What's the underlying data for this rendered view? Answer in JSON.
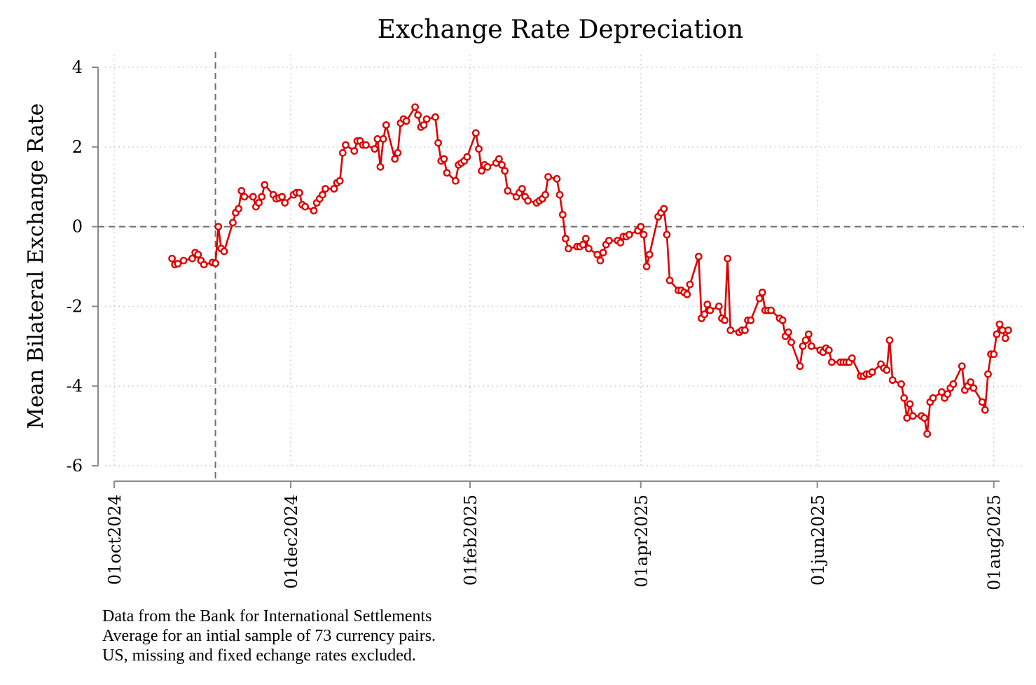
{
  "chart_data": {
    "type": "line",
    "title": "Exchange Rate Depreciation",
    "xlabel": "",
    "ylabel": "Mean Bilateral Exchange Rate",
    "x_ticks": [
      "2024-10-01",
      "2024-12-01",
      "2025-02-01",
      "2025-04-01",
      "2025-06-01",
      "2025-08-01"
    ],
    "x_tick_labels": [
      "01oct2024",
      "01dec2024",
      "01feb2025",
      "01apr2025",
      "01jun2025",
      "01aug2025"
    ],
    "xlim": [
      "2024-10-01",
      "2025-08-03"
    ],
    "y_ticks": [
      4,
      2,
      0,
      -2,
      -4,
      -6
    ],
    "y_tick_labels": [
      "4",
      "2",
      "0",
      "-2",
      "-4",
      "-6"
    ],
    "ylim": [
      -6,
      4
    ],
    "grid": true,
    "reference_lines": [
      {
        "axis": "y",
        "value": 0,
        "style": "dashed"
      },
      {
        "axis": "x",
        "value": "2024-11-05",
        "style": "dashed"
      }
    ],
    "series": [
      {
        "color": "#dd0000",
        "marker": "hollow-circle",
        "points": [
          [
            "2024-10-21",
            -0.8
          ],
          [
            "2024-10-22",
            -0.95
          ],
          [
            "2024-10-23",
            -0.93
          ],
          [
            "2024-10-25",
            -0.85
          ],
          [
            "2024-10-28",
            -0.8
          ],
          [
            "2024-10-29",
            -0.65
          ],
          [
            "2024-10-30",
            -0.7
          ],
          [
            "2024-10-31",
            -0.85
          ],
          [
            "2024-11-01",
            -0.95
          ],
          [
            "2024-11-04",
            -0.9
          ],
          [
            "2024-11-05",
            -0.92
          ],
          [
            "2024-11-06",
            0.0
          ],
          [
            "2024-11-07",
            -0.55
          ],
          [
            "2024-11-08",
            -0.62
          ],
          [
            "2024-11-11",
            0.1
          ],
          [
            "2024-11-12",
            0.35
          ],
          [
            "2024-11-13",
            0.45
          ],
          [
            "2024-11-14",
            0.9
          ],
          [
            "2024-11-15",
            0.75
          ],
          [
            "2024-11-18",
            0.75
          ],
          [
            "2024-11-19",
            0.5
          ],
          [
            "2024-11-20",
            0.6
          ],
          [
            "2024-11-21",
            0.75
          ],
          [
            "2024-11-22",
            1.05
          ],
          [
            "2024-11-25",
            0.8
          ],
          [
            "2024-11-26",
            0.7
          ],
          [
            "2024-11-27",
            0.72
          ],
          [
            "2024-11-28",
            0.75
          ],
          [
            "2024-11-29",
            0.6
          ],
          [
            "2024-12-02",
            0.8
          ],
          [
            "2024-12-03",
            0.85
          ],
          [
            "2024-12-04",
            0.85
          ],
          [
            "2024-12-05",
            0.55
          ],
          [
            "2024-12-06",
            0.5
          ],
          [
            "2024-12-09",
            0.4
          ],
          [
            "2024-12-10",
            0.6
          ],
          [
            "2024-12-11",
            0.7
          ],
          [
            "2024-12-12",
            0.8
          ],
          [
            "2024-12-13",
            0.95
          ],
          [
            "2024-12-16",
            0.95
          ],
          [
            "2024-12-17",
            1.1
          ],
          [
            "2024-12-18",
            1.15
          ],
          [
            "2024-12-19",
            1.85
          ],
          [
            "2024-12-20",
            2.05
          ],
          [
            "2024-12-23",
            1.9
          ],
          [
            "2024-12-24",
            2.15
          ],
          [
            "2024-12-25",
            2.15
          ],
          [
            "2024-12-26",
            2.05
          ],
          [
            "2024-12-27",
            2.05
          ],
          [
            "2024-12-30",
            1.95
          ],
          [
            "2024-12-31",
            2.2
          ],
          [
            "2025-01-01",
            1.5
          ],
          [
            "2025-01-02",
            2.2
          ],
          [
            "2025-01-03",
            2.55
          ],
          [
            "2025-01-06",
            1.7
          ],
          [
            "2025-01-07",
            1.85
          ],
          [
            "2025-01-08",
            2.6
          ],
          [
            "2025-01-09",
            2.7
          ],
          [
            "2025-01-10",
            2.65
          ],
          [
            "2025-01-13",
            3.0
          ],
          [
            "2025-01-14",
            2.8
          ],
          [
            "2025-01-15",
            2.5
          ],
          [
            "2025-01-16",
            2.55
          ],
          [
            "2025-01-17",
            2.7
          ],
          [
            "2025-01-20",
            2.75
          ],
          [
            "2025-01-21",
            2.1
          ],
          [
            "2025-01-22",
            1.65
          ],
          [
            "2025-01-23",
            1.7
          ],
          [
            "2025-01-24",
            1.35
          ],
          [
            "2025-01-27",
            1.15
          ],
          [
            "2025-01-28",
            1.55
          ],
          [
            "2025-01-29",
            1.6
          ],
          [
            "2025-01-30",
            1.65
          ],
          [
            "2025-01-31",
            1.75
          ],
          [
            "2025-02-03",
            2.35
          ],
          [
            "2025-02-04",
            1.95
          ],
          [
            "2025-02-05",
            1.4
          ],
          [
            "2025-02-06",
            1.55
          ],
          [
            "2025-02-07",
            1.5
          ],
          [
            "2025-02-10",
            1.6
          ],
          [
            "2025-02-11",
            1.7
          ],
          [
            "2025-02-12",
            1.55
          ],
          [
            "2025-02-13",
            1.4
          ],
          [
            "2025-02-14",
            0.9
          ],
          [
            "2025-02-17",
            0.75
          ],
          [
            "2025-02-18",
            0.85
          ],
          [
            "2025-02-19",
            0.95
          ],
          [
            "2025-02-20",
            0.75
          ],
          [
            "2025-02-21",
            0.65
          ],
          [
            "2025-02-24",
            0.6
          ],
          [
            "2025-02-25",
            0.65
          ],
          [
            "2025-02-26",
            0.7
          ],
          [
            "2025-02-27",
            0.8
          ],
          [
            "2025-02-28",
            1.25
          ],
          [
            "2025-03-03",
            1.2
          ],
          [
            "2025-03-04",
            0.8
          ],
          [
            "2025-03-05",
            0.3
          ],
          [
            "2025-03-06",
            -0.3
          ],
          [
            "2025-03-07",
            -0.55
          ],
          [
            "2025-03-10",
            -0.5
          ],
          [
            "2025-03-11",
            -0.5
          ],
          [
            "2025-03-12",
            -0.45
          ],
          [
            "2025-03-13",
            -0.3
          ],
          [
            "2025-03-14",
            -0.55
          ],
          [
            "2025-03-17",
            -0.7
          ],
          [
            "2025-03-18",
            -0.85
          ],
          [
            "2025-03-19",
            -0.65
          ],
          [
            "2025-03-20",
            -0.45
          ],
          [
            "2025-03-21",
            -0.35
          ],
          [
            "2025-03-24",
            -0.35
          ],
          [
            "2025-03-25",
            -0.4
          ],
          [
            "2025-03-26",
            -0.25
          ],
          [
            "2025-03-27",
            -0.25
          ],
          [
            "2025-03-28",
            -0.2
          ],
          [
            "2025-03-31",
            -0.1
          ],
          [
            "2025-04-01",
            0.0
          ],
          [
            "2025-04-02",
            -0.2
          ],
          [
            "2025-04-03",
            -1.0
          ],
          [
            "2025-04-04",
            -0.7
          ],
          [
            "2025-04-07",
            0.25
          ],
          [
            "2025-04-08",
            0.35
          ],
          [
            "2025-04-09",
            0.45
          ],
          [
            "2025-04-10",
            -0.2
          ],
          [
            "2025-04-11",
            -1.35
          ],
          [
            "2025-04-14",
            -1.6
          ],
          [
            "2025-04-15",
            -1.6
          ],
          [
            "2025-04-16",
            -1.65
          ],
          [
            "2025-04-17",
            -1.7
          ],
          [
            "2025-04-18",
            -1.45
          ],
          [
            "2025-04-21",
            -0.75
          ],
          [
            "2025-04-22",
            -2.3
          ],
          [
            "2025-04-23",
            -2.2
          ],
          [
            "2025-04-24",
            -1.95
          ],
          [
            "2025-04-25",
            -2.1
          ],
          [
            "2025-04-28",
            -2.0
          ],
          [
            "2025-04-29",
            -2.3
          ],
          [
            "2025-04-30",
            -2.35
          ],
          [
            "2025-05-01",
            -0.8
          ],
          [
            "2025-05-02",
            -2.6
          ],
          [
            "2025-05-05",
            -2.65
          ],
          [
            "2025-05-06",
            -2.6
          ],
          [
            "2025-05-07",
            -2.6
          ],
          [
            "2025-05-08",
            -2.35
          ],
          [
            "2025-05-09",
            -2.35
          ],
          [
            "2025-05-12",
            -1.8
          ],
          [
            "2025-05-13",
            -1.65
          ],
          [
            "2025-05-14",
            -2.1
          ],
          [
            "2025-05-15",
            -2.1
          ],
          [
            "2025-05-16",
            -2.1
          ],
          [
            "2025-05-19",
            -2.3
          ],
          [
            "2025-05-20",
            -2.35
          ],
          [
            "2025-05-21",
            -2.75
          ],
          [
            "2025-05-22",
            -2.65
          ],
          [
            "2025-05-23",
            -2.9
          ],
          [
            "2025-05-26",
            -3.5
          ],
          [
            "2025-05-27",
            -3.0
          ],
          [
            "2025-05-28",
            -2.85
          ],
          [
            "2025-05-29",
            -2.7
          ],
          [
            "2025-05-30",
            -3.0
          ],
          [
            "2025-06-02",
            -3.1
          ],
          [
            "2025-06-03",
            -3.15
          ],
          [
            "2025-06-04",
            -3.05
          ],
          [
            "2025-06-05",
            -3.1
          ],
          [
            "2025-06-06",
            -3.4
          ],
          [
            "2025-06-09",
            -3.4
          ],
          [
            "2025-06-10",
            -3.4
          ],
          [
            "2025-06-11",
            -3.4
          ],
          [
            "2025-06-12",
            -3.4
          ],
          [
            "2025-06-13",
            -3.3
          ],
          [
            "2025-06-16",
            -3.75
          ],
          [
            "2025-06-17",
            -3.75
          ],
          [
            "2025-06-18",
            -3.7
          ],
          [
            "2025-06-19",
            -3.7
          ],
          [
            "2025-06-20",
            -3.65
          ],
          [
            "2025-06-23",
            -3.45
          ],
          [
            "2025-06-24",
            -3.55
          ],
          [
            "2025-06-25",
            -3.6
          ],
          [
            "2025-06-26",
            -2.85
          ],
          [
            "2025-06-27",
            -3.85
          ],
          [
            "2025-06-30",
            -3.95
          ],
          [
            "2025-07-01",
            -4.3
          ],
          [
            "2025-07-02",
            -4.8
          ],
          [
            "2025-07-03",
            -4.45
          ],
          [
            "2025-07-04",
            -4.75
          ],
          [
            "2025-07-07",
            -4.75
          ],
          [
            "2025-07-08",
            -4.8
          ],
          [
            "2025-07-09",
            -5.2
          ],
          [
            "2025-07-10",
            -4.4
          ],
          [
            "2025-07-11",
            -4.3
          ],
          [
            "2025-07-14",
            -4.15
          ],
          [
            "2025-07-15",
            -4.3
          ],
          [
            "2025-07-16",
            -4.2
          ],
          [
            "2025-07-17",
            -4.05
          ],
          [
            "2025-07-18",
            -3.95
          ],
          [
            "2025-07-21",
            -3.5
          ],
          [
            "2025-07-22",
            -4.1
          ],
          [
            "2025-07-23",
            -4.0
          ],
          [
            "2025-07-24",
            -3.9
          ],
          [
            "2025-07-25",
            -4.05
          ],
          [
            "2025-07-28",
            -4.4
          ],
          [
            "2025-07-29",
            -4.6
          ],
          [
            "2025-07-30",
            -3.7
          ],
          [
            "2025-07-31",
            -3.2
          ],
          [
            "2025-08-01",
            -3.2
          ],
          [
            "2025-08-02",
            -2.7
          ],
          [
            "2025-08-03",
            -2.45
          ],
          [
            "2025-08-04",
            -2.6
          ],
          [
            "2025-08-05",
            -2.8
          ],
          [
            "2025-08-06",
            -2.6
          ]
        ]
      }
    ]
  },
  "notes": [
    "Data from the Bank for International Settlements",
    "Average for an intial sample of 73 currency pairs.",
    "US, missing and fixed echange rates excluded."
  ]
}
